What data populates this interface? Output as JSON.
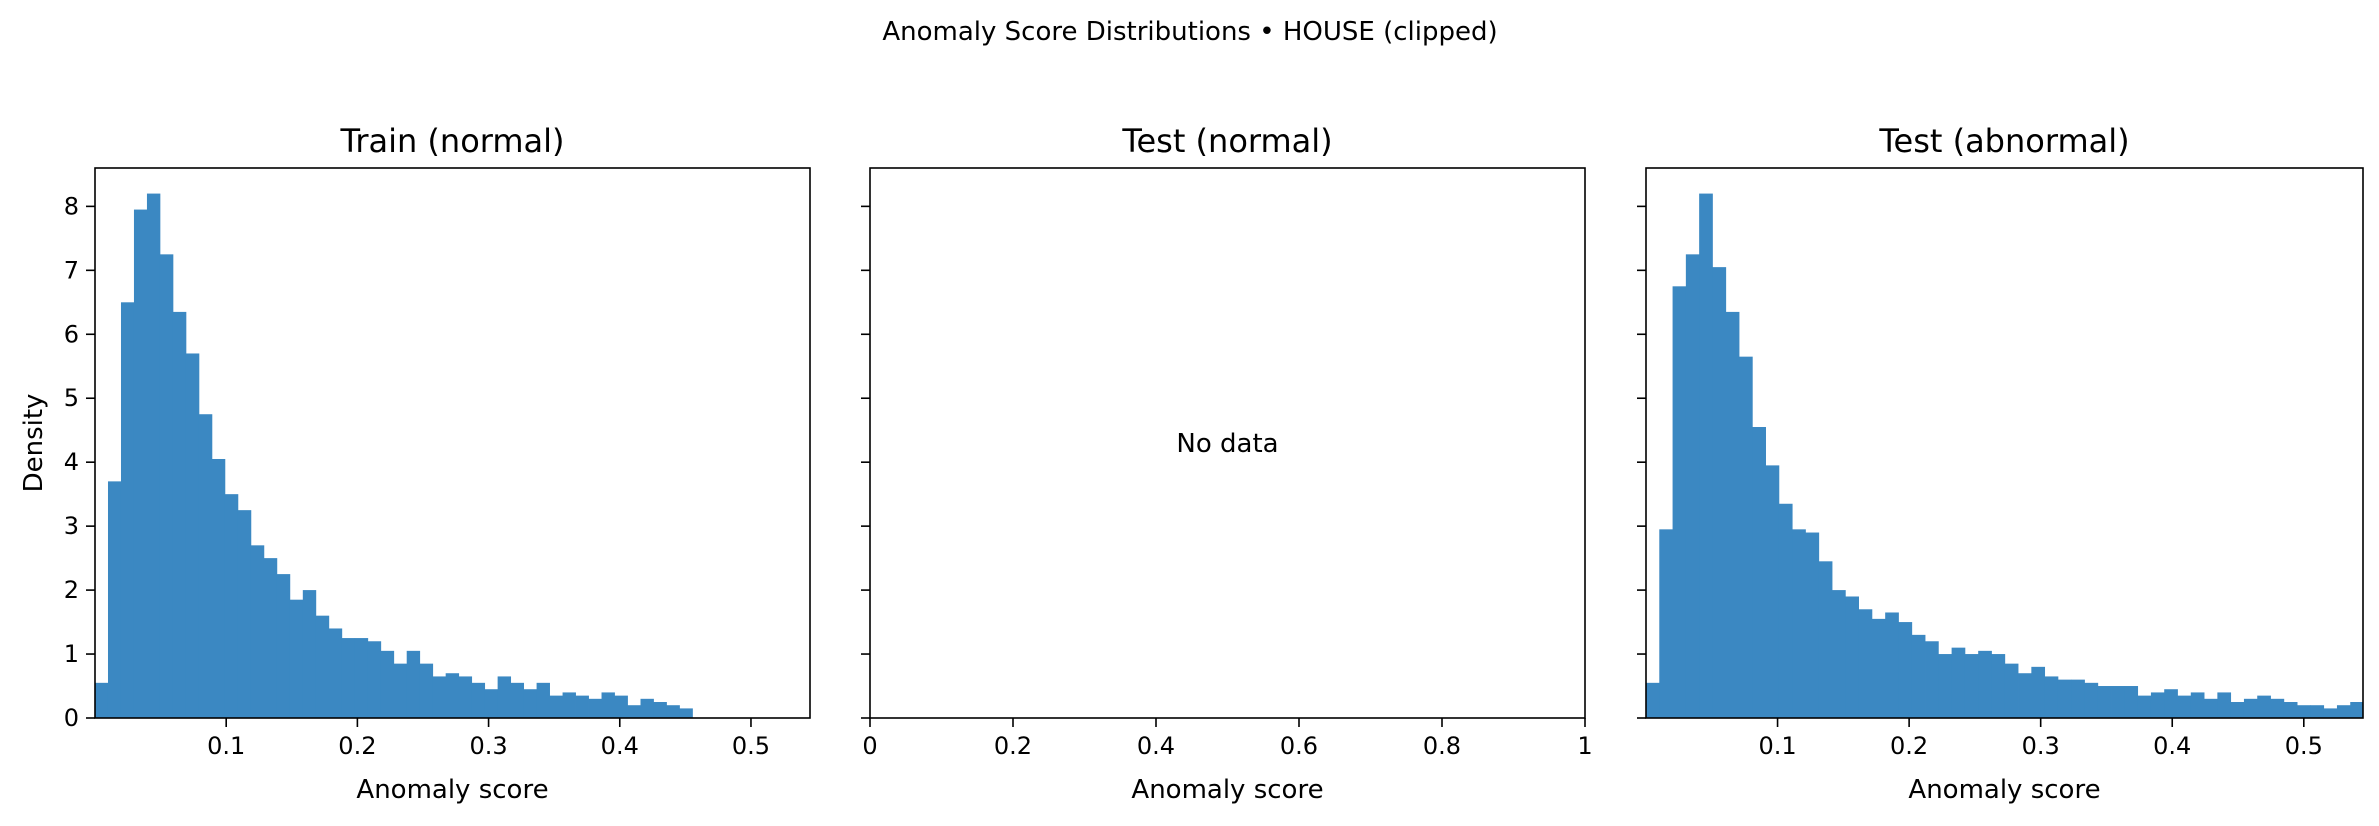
{
  "figure": {
    "suptitle": "Anomaly Score Distributions • HOUSE (clipped)"
  },
  "chart_data": [
    {
      "type": "bar",
      "title": "Train (normal)",
      "xlabel": "Anomaly score",
      "ylabel": "Density",
      "xlim": [
        0.0,
        0.545
      ],
      "ylim": [
        0,
        8.6
      ],
      "xticks": [
        0.1,
        0.2,
        0.3,
        0.4,
        0.5
      ],
      "yticks": [
        0,
        1,
        2,
        3,
        4,
        5,
        6,
        7,
        8
      ],
      "bin_start": 0.0,
      "bin_width": 0.0099,
      "values": [
        0.55,
        3.7,
        6.5,
        7.95,
        8.2,
        7.25,
        6.35,
        5.7,
        4.75,
        4.05,
        3.5,
        3.25,
        2.7,
        2.5,
        2.25,
        1.85,
        2.0,
        1.6,
        1.4,
        1.25,
        1.25,
        1.2,
        1.05,
        0.85,
        1.05,
        0.85,
        0.65,
        0.7,
        0.65,
        0.55,
        0.45,
        0.65,
        0.55,
        0.45,
        0.55,
        0.35,
        0.4,
        0.35,
        0.3,
        0.4,
        0.35,
        0.2,
        0.3,
        0.25,
        0.2,
        0.15
      ],
      "color": "#3b88c2",
      "grid": false
    },
    {
      "type": "bar",
      "title": "Test (normal)",
      "xlabel": "Anomaly score",
      "xlim": [
        0.0,
        1.0
      ],
      "ylim": [
        0,
        8.6
      ],
      "xticks": [
        0.0,
        0.2,
        0.4,
        0.6,
        0.8,
        1.0
      ],
      "annotation": "No data",
      "values": [],
      "grid": false
    },
    {
      "type": "bar",
      "title": "Test (abnormal)",
      "xlabel": "Anomaly score",
      "xlim": [
        0.0,
        0.545
      ],
      "ylim": [
        0,
        8.6
      ],
      "xticks": [
        0.1,
        0.2,
        0.3,
        0.4,
        0.5
      ],
      "bin_start": 0.0,
      "bin_width": 0.0101,
      "values": [
        0.55,
        2.95,
        6.75,
        7.25,
        8.2,
        7.05,
        6.35,
        5.65,
        4.55,
        3.95,
        3.35,
        2.95,
        2.9,
        2.45,
        2.0,
        1.9,
        1.7,
        1.55,
        1.65,
        1.5,
        1.3,
        1.2,
        1.0,
        1.1,
        1.0,
        1.05,
        1.0,
        0.85,
        0.7,
        0.8,
        0.65,
        0.6,
        0.6,
        0.55,
        0.5,
        0.5,
        0.5,
        0.35,
        0.4,
        0.45,
        0.35,
        0.4,
        0.3,
        0.4,
        0.25,
        0.3,
        0.35,
        0.3,
        0.25,
        0.2,
        0.2,
        0.15,
        0.2,
        0.25
      ],
      "color": "#3b88c2",
      "grid": false
    }
  ]
}
